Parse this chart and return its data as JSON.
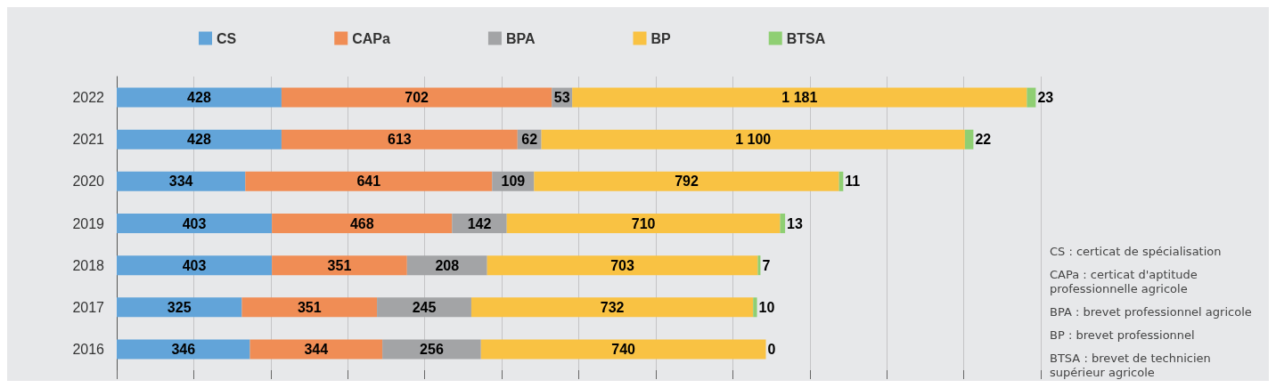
{
  "chart_data": {
    "type": "bar",
    "orientation": "horizontal",
    "stacked": true,
    "categories": [
      "2022",
      "2021",
      "2020",
      "2019",
      "2018",
      "2017",
      "2016"
    ],
    "series": [
      {
        "name": "CS",
        "color": "#62a4d9",
        "values": [
          428,
          428,
          334,
          403,
          403,
          325,
          346
        ],
        "value_labels": [
          "428",
          "428",
          "334",
          "403",
          "403",
          "325",
          "346"
        ]
      },
      {
        "name": "CAPa",
        "color": "#f08d55",
        "values": [
          702,
          613,
          641,
          468,
          351,
          351,
          344
        ],
        "value_labels": [
          "702",
          "613",
          "641",
          "468",
          "351",
          "351",
          "344"
        ]
      },
      {
        "name": "BPA",
        "color": "#a3a4a6",
        "values": [
          53,
          62,
          109,
          142,
          208,
          245,
          256
        ],
        "value_labels": [
          "53",
          "62",
          "109",
          "142",
          "208",
          "245",
          "256"
        ]
      },
      {
        "name": "BP",
        "color": "#f9c243",
        "values": [
          1181,
          1100,
          792,
          710,
          703,
          732,
          740
        ],
        "value_labels": [
          "1 181",
          "1 100",
          "792",
          "710",
          "703",
          "732",
          "740"
        ]
      },
      {
        "name": "BTSA",
        "color": "#8fcf73",
        "values": [
          23,
          22,
          11,
          13,
          7,
          10,
          0
        ],
        "value_labels": [
          "23",
          "22",
          "11",
          "13",
          "7",
          "10",
          "0"
        ]
      }
    ],
    "xlim": [
      0,
      2400
    ],
    "xticks": [
      {
        "value": 0,
        "label": null
      },
      {
        "value": 200,
        "label": null
      },
      {
        "value": 400,
        "label": null
      },
      {
        "value": 600,
        "label": null
      },
      {
        "value": 800,
        "label": null
      },
      {
        "value": 1000,
        "label": null
      },
      {
        "value": 1200,
        "label": null
      },
      {
        "value": 1400,
        "label": null
      },
      {
        "value": 1600,
        "label": null
      },
      {
        "value": 1800,
        "label": null
      },
      {
        "value": 2000,
        "label": null
      },
      {
        "value": 2200,
        "label": null
      },
      {
        "value": 2400,
        "label": null
      }
    ],
    "tick_labels": "y",
    "grid": "x",
    "legend": "top",
    "annotations": [
      "CS : certicat de spécialisation",
      "CAPa : certicat d'aptitude professionnelle agricole",
      "BPA : brevet professionnel agricole",
      "BP : brevet professionnel",
      "BTSA : brevet de technicien supérieur agricole"
    ]
  }
}
